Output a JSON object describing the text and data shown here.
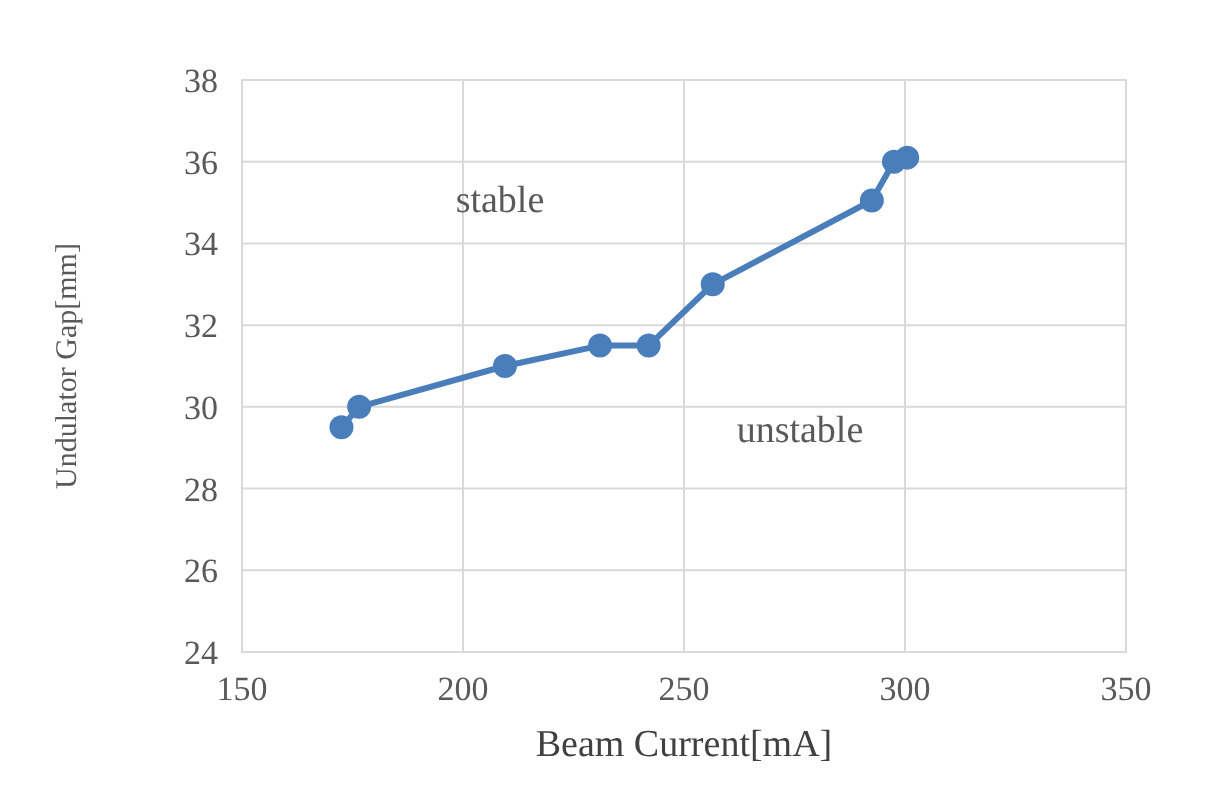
{
  "chart_data": {
    "type": "line",
    "xlabel": "Beam Current[mA]",
    "ylabel": "Undulator Gap[mm]",
    "x": [
      172.5,
      176.5,
      209.5,
      231,
      242,
      256.5,
      292.5,
      297.5,
      300.5
    ],
    "series": [
      {
        "color": "#4a7ebb",
        "values": [
          29.5,
          30,
          31,
          31.5,
          31.5,
          33,
          35.05,
          36,
          36.1
        ]
      }
    ],
    "xlim": [
      150,
      350
    ],
    "xticks": [
      150,
      200,
      250,
      300,
      350
    ],
    "ylim": [
      24,
      38
    ],
    "yticks": [
      24,
      26,
      28,
      30,
      32,
      34,
      36,
      38
    ],
    "grid": true,
    "marker": "circle",
    "line_style": "solid",
    "annotations": [
      "stable",
      "unstable"
    ]
  }
}
